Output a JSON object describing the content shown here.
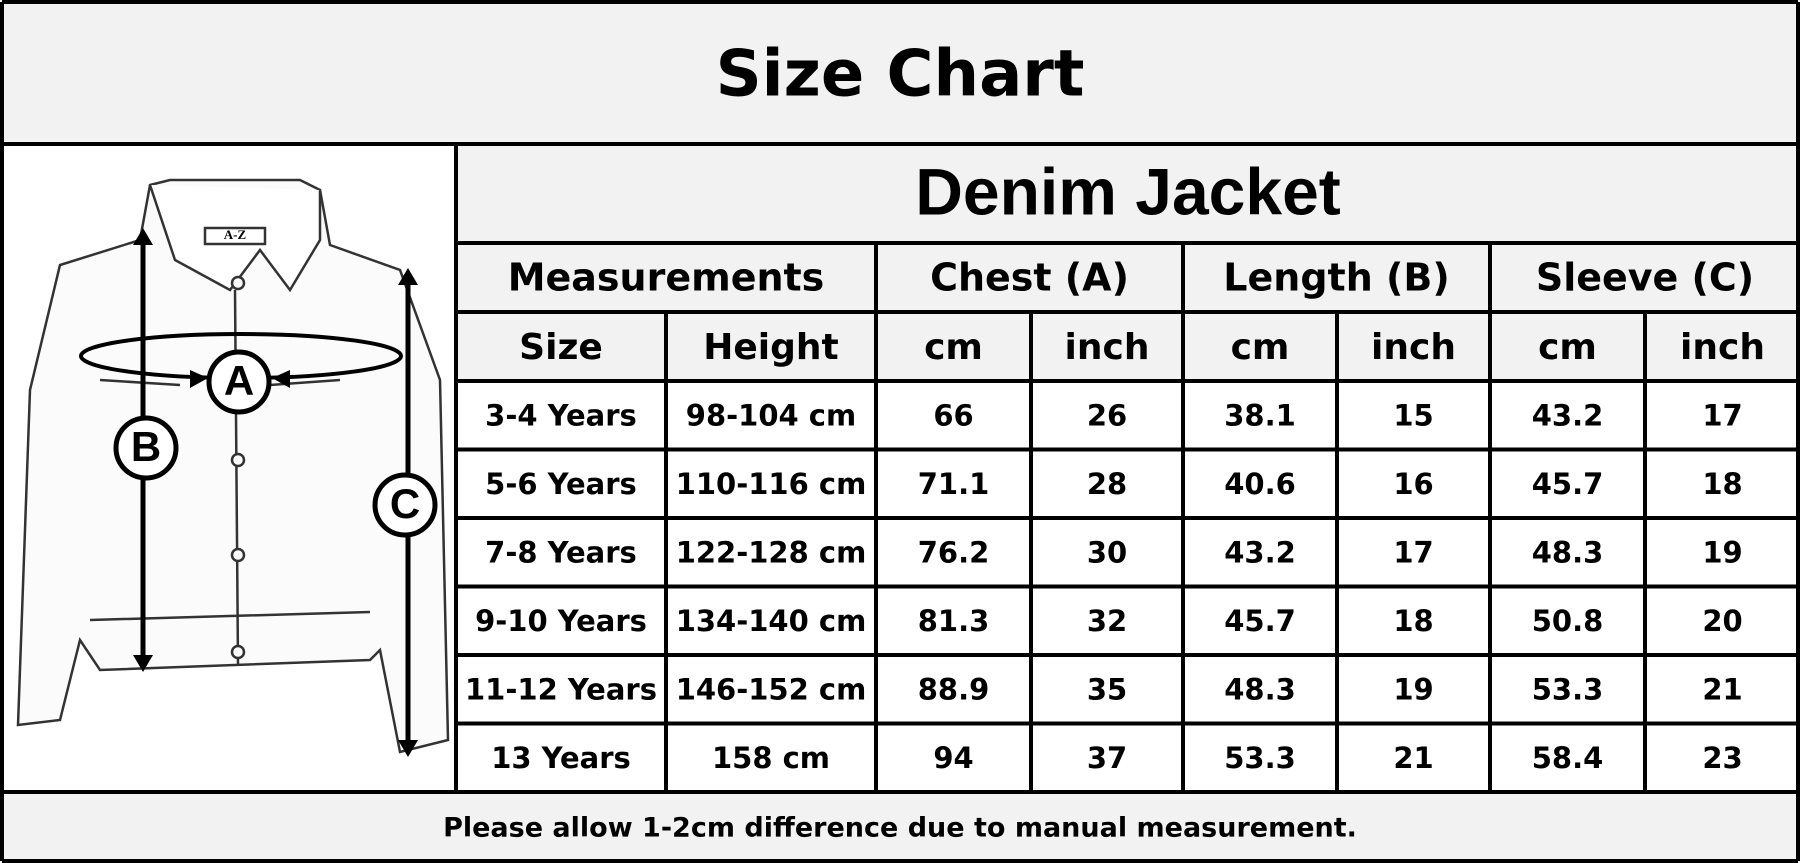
{
  "header": {
    "title": "Size Chart"
  },
  "diagram": {
    "labels": [
      "A",
      "B",
      "C"
    ],
    "logo": "A-Z"
  },
  "table": {
    "title": "Denim Jacket",
    "groups": [
      "Measurements",
      "Chest (A)",
      "Length (B)",
      "Sleeve (C)"
    ],
    "columns": [
      "Size",
      "Height",
      "cm",
      "inch",
      "cm",
      "inch",
      "cm",
      "inch"
    ],
    "rows": [
      [
        "3-4 Years",
        "98-104 cm",
        66,
        26,
        38.1,
        15,
        43.2,
        17
      ],
      [
        "5-6 Years",
        "110-116 cm",
        71.1,
        28,
        40.6,
        16,
        45.7,
        18
      ],
      [
        "7-8 Years",
        "122-128 cm",
        76.2,
        30,
        43.2,
        17,
        48.3,
        19
      ],
      [
        "9-10 Years",
        "134-140 cm",
        81.3,
        32,
        45.7,
        18,
        50.8,
        20
      ],
      [
        "11-12 Years",
        "146-152 cm",
        88.9,
        35,
        48.3,
        19,
        53.3,
        21
      ],
      [
        "13 Years",
        "158 cm",
        94,
        37,
        53.3,
        21,
        58.4,
        23
      ]
    ]
  },
  "footer": {
    "note": "Please allow 1-2cm difference due to manual measurement."
  }
}
